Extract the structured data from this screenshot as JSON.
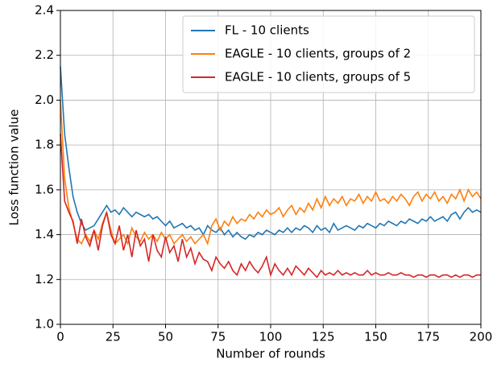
{
  "chart_data": {
    "type": "line",
    "xlabel": "Number of rounds",
    "ylabel": "Loss function value",
    "x": [
      0,
      2,
      4,
      6,
      8,
      10,
      12,
      14,
      16,
      18,
      20,
      22,
      24,
      26,
      28,
      30,
      32,
      34,
      36,
      38,
      40,
      42,
      44,
      46,
      48,
      50,
      52,
      54,
      56,
      58,
      60,
      62,
      64,
      66,
      68,
      70,
      72,
      74,
      76,
      78,
      80,
      82,
      84,
      86,
      88,
      90,
      92,
      94,
      96,
      98,
      100,
      102,
      104,
      106,
      108,
      110,
      112,
      114,
      116,
      118,
      120,
      122,
      124,
      126,
      128,
      130,
      132,
      134,
      136,
      138,
      140,
      142,
      144,
      146,
      148,
      150,
      152,
      154,
      156,
      158,
      160,
      162,
      164,
      166,
      168,
      170,
      172,
      174,
      176,
      178,
      180,
      182,
      184,
      186,
      188,
      190,
      192,
      194,
      196,
      198,
      200
    ],
    "series": [
      {
        "name": "FL - 10 clients",
        "color": "#1f77b4",
        "values": [
          2.15,
          1.85,
          1.7,
          1.57,
          1.5,
          1.45,
          1.42,
          1.43,
          1.44,
          1.47,
          1.5,
          1.53,
          1.5,
          1.51,
          1.49,
          1.52,
          1.5,
          1.48,
          1.5,
          1.49,
          1.48,
          1.49,
          1.47,
          1.48,
          1.46,
          1.44,
          1.46,
          1.43,
          1.44,
          1.45,
          1.43,
          1.44,
          1.42,
          1.43,
          1.4,
          1.44,
          1.42,
          1.41,
          1.43,
          1.4,
          1.42,
          1.39,
          1.41,
          1.39,
          1.38,
          1.4,
          1.39,
          1.41,
          1.4,
          1.42,
          1.41,
          1.4,
          1.42,
          1.41,
          1.43,
          1.41,
          1.43,
          1.42,
          1.44,
          1.43,
          1.41,
          1.44,
          1.42,
          1.43,
          1.41,
          1.45,
          1.42,
          1.43,
          1.44,
          1.43,
          1.42,
          1.44,
          1.43,
          1.45,
          1.44,
          1.43,
          1.45,
          1.44,
          1.46,
          1.45,
          1.44,
          1.46,
          1.45,
          1.47,
          1.46,
          1.45,
          1.47,
          1.46,
          1.48,
          1.46,
          1.47,
          1.48,
          1.46,
          1.49,
          1.5,
          1.47,
          1.5,
          1.52,
          1.5,
          1.51,
          1.5
        ]
      },
      {
        "name": "EAGLE - 10 clients, groups of 2",
        "color": "#ff7f0e",
        "values": [
          2.0,
          1.65,
          1.52,
          1.45,
          1.38,
          1.36,
          1.4,
          1.37,
          1.42,
          1.38,
          1.45,
          1.5,
          1.42,
          1.36,
          1.38,
          1.4,
          1.36,
          1.43,
          1.39,
          1.37,
          1.41,
          1.38,
          1.4,
          1.37,
          1.41,
          1.38,
          1.4,
          1.36,
          1.38,
          1.4,
          1.37,
          1.39,
          1.36,
          1.38,
          1.4,
          1.36,
          1.44,
          1.47,
          1.42,
          1.46,
          1.44,
          1.48,
          1.45,
          1.47,
          1.46,
          1.49,
          1.47,
          1.5,
          1.48,
          1.51,
          1.49,
          1.5,
          1.52,
          1.48,
          1.51,
          1.53,
          1.49,
          1.52,
          1.5,
          1.54,
          1.51,
          1.56,
          1.52,
          1.57,
          1.53,
          1.56,
          1.54,
          1.57,
          1.53,
          1.56,
          1.55,
          1.58,
          1.54,
          1.57,
          1.55,
          1.59,
          1.55,
          1.56,
          1.54,
          1.57,
          1.55,
          1.58,
          1.56,
          1.53,
          1.57,
          1.59,
          1.55,
          1.58,
          1.56,
          1.59,
          1.55,
          1.57,
          1.54,
          1.58,
          1.56,
          1.6,
          1.55,
          1.6,
          1.57,
          1.59,
          1.56
        ]
      },
      {
        "name": "EAGLE - 10 clients, groups of 5",
        "color": "#d62728",
        "values": [
          1.85,
          1.55,
          1.5,
          1.46,
          1.36,
          1.47,
          1.39,
          1.35,
          1.42,
          1.33,
          1.44,
          1.5,
          1.4,
          1.36,
          1.44,
          1.33,
          1.4,
          1.3,
          1.42,
          1.35,
          1.38,
          1.28,
          1.4,
          1.33,
          1.3,
          1.39,
          1.32,
          1.35,
          1.28,
          1.38,
          1.3,
          1.34,
          1.27,
          1.32,
          1.29,
          1.28,
          1.24,
          1.3,
          1.27,
          1.25,
          1.28,
          1.24,
          1.22,
          1.27,
          1.24,
          1.28,
          1.25,
          1.23,
          1.26,
          1.3,
          1.22,
          1.27,
          1.24,
          1.22,
          1.25,
          1.22,
          1.26,
          1.24,
          1.22,
          1.25,
          1.23,
          1.21,
          1.24,
          1.22,
          1.23,
          1.22,
          1.24,
          1.22,
          1.23,
          1.22,
          1.23,
          1.22,
          1.22,
          1.24,
          1.22,
          1.23,
          1.22,
          1.22,
          1.23,
          1.22,
          1.22,
          1.23,
          1.22,
          1.22,
          1.21,
          1.22,
          1.22,
          1.21,
          1.22,
          1.22,
          1.21,
          1.22,
          1.22,
          1.21,
          1.22,
          1.21,
          1.22,
          1.22,
          1.21,
          1.22,
          1.22
        ]
      }
    ],
    "xlim": [
      0,
      200
    ],
    "xticks": [
      0,
      25,
      50,
      75,
      100,
      125,
      150,
      175,
      200
    ],
    "ylim": [
      1,
      2.4
    ],
    "yticks": [
      {
        "value": 1,
        "label": "1.0"
      },
      1.2,
      1.4,
      1.6,
      1.8,
      {
        "value": 2,
        "label": "2.0"
      },
      2.2,
      2.4
    ],
    "grid": true,
    "legend": "upper right"
  }
}
